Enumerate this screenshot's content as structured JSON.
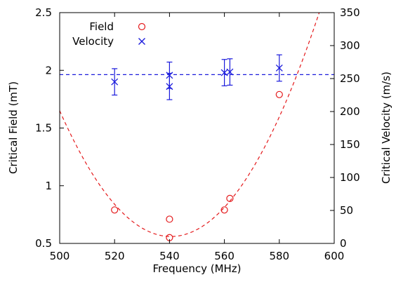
{
  "chart_data": {
    "type": "scatter",
    "x": {
      "label": "Frequency (MHz)",
      "range": [
        500,
        600
      ],
      "ticks": [
        500,
        520,
        540,
        560,
        580,
        600
      ]
    },
    "y_left": {
      "label": "Critical Field (mT)",
      "range": [
        0.5,
        2.5
      ],
      "ticks": [
        0.5,
        1,
        1.5,
        2,
        2.5
      ],
      "tick_labels": [
        "0.5",
        "1",
        "1.5",
        "2",
        "2.5"
      ]
    },
    "y_right": {
      "label": "Critical Velocity (m/s)",
      "range": [
        0,
        350
      ],
      "ticks": [
        0,
        50,
        100,
        150,
        200,
        250,
        300,
        350
      ]
    },
    "grid": false,
    "legend_position": "top-left",
    "series": [
      {
        "name": "Field",
        "axis": "left",
        "marker": "circle",
        "color": "#e41a1c",
        "points": [
          {
            "x": 520,
            "y": 0.79
          },
          {
            "x": 540,
            "y": 0.71
          },
          {
            "x": 540,
            "y": 0.55
          },
          {
            "x": 560,
            "y": 0.79
          },
          {
            "x": 562,
            "y": 0.89
          },
          {
            "x": 580,
            "y": 1.79
          }
        ]
      },
      {
        "name": "Velocity",
        "axis": "right",
        "marker": "x",
        "color": "#1a1adc",
        "points": [
          {
            "x": 520,
            "y": 245,
            "err": 20
          },
          {
            "x": 540,
            "y": 255,
            "err": 20
          },
          {
            "x": 540,
            "y": 238,
            "err": 20
          },
          {
            "x": 560,
            "y": 259,
            "err": 20
          },
          {
            "x": 562,
            "y": 260,
            "err": 20
          },
          {
            "x": 580,
            "y": 266,
            "err": 20
          }
        ]
      }
    ],
    "fits": [
      {
        "series": "Field",
        "axis": "left",
        "kind": "parabola",
        "color": "#e41a1c",
        "vertex": {
          "x": 540.5,
          "y": 0.56
        },
        "through": {
          "x": 500,
          "y": 1.65
        }
      },
      {
        "series": "Velocity",
        "axis": "right",
        "kind": "constant",
        "color": "#1a1adc",
        "value": 256
      }
    ]
  }
}
